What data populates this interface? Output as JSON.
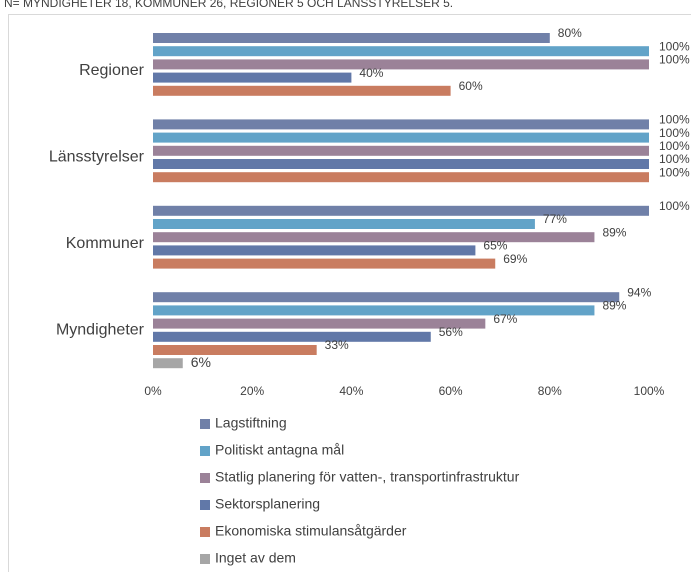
{
  "chart_data": {
    "type": "bar",
    "orientation": "horizontal",
    "subtitle": "N= MYNDIGHETER 18, KOMMUNER 26, REGIONER 5 OCH LÄNSSTYRELSER 5.",
    "categories": [
      "Regioner",
      "Länsstyrelser",
      "Kommuner",
      "Myndigheter"
    ],
    "series": [
      {
        "name": "Lagstiftning",
        "color": "#7080a8",
        "values": [
          80,
          100,
          100,
          94
        ],
        "value_labels": [
          "80%",
          "100%",
          "100%",
          "94%"
        ]
      },
      {
        "name": "Politiskt antagna mål",
        "color": "#62a3c8",
        "values": [
          100,
          100,
          77,
          89
        ],
        "value_labels": [
          "100%",
          "100%",
          "77%",
          "89%"
        ]
      },
      {
        "name": "Statlig planering för vatten-, transportinfrastruktur",
        "color": "#9b8298",
        "values": [
          100,
          100,
          89,
          67
        ],
        "value_labels": [
          "100%",
          "100%",
          "89%",
          "67%"
        ]
      },
      {
        "name": "Sektorsplanering",
        "color": "#6178a8",
        "values": [
          40,
          100,
          65,
          56
        ],
        "value_labels": [
          "40%",
          "100%",
          "65%",
          "56%"
        ]
      },
      {
        "name": "Ekonomiska stimulansåtgärder",
        "color": "#c97c60",
        "values": [
          60,
          100,
          69,
          33
        ],
        "value_labels": [
          "60%",
          "100%",
          "69%",
          "33%"
        ]
      },
      {
        "name": "Inget av dem",
        "color": "#a6a6a6",
        "values": [
          null,
          null,
          null,
          6
        ],
        "value_labels": [
          null,
          null,
          null,
          "6%"
        ]
      }
    ],
    "xlim": [
      0,
      100
    ],
    "xticks": [
      {
        "value": 0,
        "label": "0%"
      },
      {
        "value": 20,
        "label": "20%"
      },
      {
        "value": 40,
        "label": "40%"
      },
      {
        "value": 60,
        "label": "60%"
      },
      {
        "value": 80,
        "label": "80%"
      },
      {
        "value": 100,
        "label": "100%"
      }
    ],
    "grid": false,
    "legend": "bottom"
  }
}
